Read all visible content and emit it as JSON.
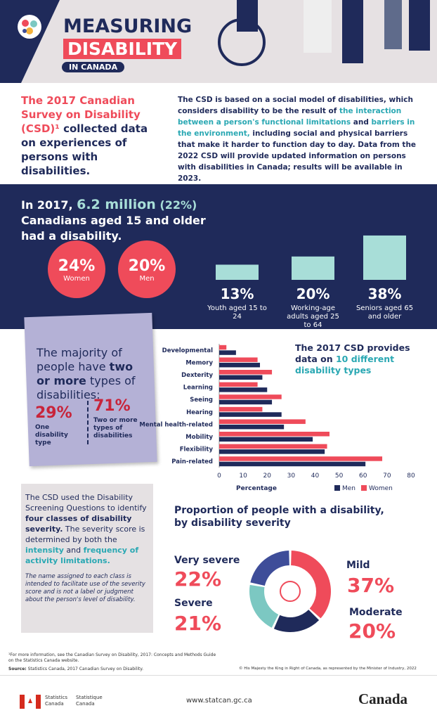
{
  "header": {
    "title_line1": "MEASURING",
    "title_line2": "DISABILITY",
    "subtitle": "IN CANADA"
  },
  "intro": {
    "heading_red": "The 2017 Canadian Survey on Disability (CSD)¹",
    "heading_navy": "collected data on experiences of persons with disabilities.",
    "body": [
      "The CSD is based on a social model of disabilities, which considers disability to be the result of ",
      "the interaction between a person's functional limitations",
      " and ",
      "barriers in the environment,",
      " including social and physical barriers that make it harder to function day to day. Data from the 2022 CSD will provide updated information on persons with disabilities in Canada; results will be available in 2023."
    ]
  },
  "prevalence": {
    "lead": "In 2017,",
    "number": "6.2 million",
    "percent": "(22%)",
    "rest": "Canadians aged 15 and older had a disability."
  },
  "sex": [
    {
      "value": "24%",
      "label": "Women"
    },
    {
      "value": "20%",
      "label": "Men"
    }
  ],
  "majority": {
    "line1": "The majority of people have",
    "bold": "two or more",
    "line2": "types of disabilities:",
    "one_value": "29%",
    "one_label": "One disability type",
    "two_value": "71%",
    "two_label": "Two or more types of disabilities"
  },
  "chart_data": [
    {
      "type": "bar",
      "categories": [
        "Youth aged 15 to 24",
        "Working-age adults aged 25 to 64",
        "Seniors aged 65 and older"
      ],
      "values": [
        13,
        20,
        38
      ],
      "value_labels": [
        "13%",
        "20%",
        "38%"
      ],
      "color": "#a8ded8"
    },
    {
      "type": "hbar",
      "title_start": "The 2017 CSD provides data on ",
      "title_highlight": "10 different disability types",
      "categories": [
        "Developmental",
        "Memory",
        "Dexterity",
        "Learning",
        "Seeing",
        "Hearing",
        "Mental health-related",
        "Mobility",
        "Flexibility",
        "Pain-related"
      ],
      "series": [
        {
          "name": "Men",
          "color": "#1f2a5a",
          "values": [
            7,
            17,
            18,
            20,
            22,
            26,
            27,
            39,
            44,
            61
          ]
        },
        {
          "name": "Women",
          "color": "#ef4b5a",
          "values": [
            3,
            16,
            22,
            16,
            26,
            18,
            36,
            46,
            45,
            68
          ]
        }
      ],
      "xlim": [
        0,
        80
      ],
      "xticks": [
        0,
        10,
        20,
        30,
        40,
        50,
        60,
        70,
        80
      ],
      "xlabel": "Percentage",
      "legend": "bottom-right"
    },
    {
      "type": "donut",
      "title": "Proportion of people with a disability, by disability severity",
      "categories": [
        "Mild",
        "Moderate",
        "Severe",
        "Very severe"
      ],
      "values": [
        37,
        20,
        21,
        22
      ],
      "value_labels": [
        "37%",
        "20%",
        "21%",
        "22%"
      ],
      "colors": [
        "#ef4b5a",
        "#1f2a5a",
        "#7cc8c2",
        "#3e4d99"
      ]
    }
  ],
  "severity": {
    "p1_start": "The CSD used the Disability Screening Questions to identify ",
    "p1_bold": "four classes of disability severity.",
    "p1_mid": " The severity score is determined by both the ",
    "p1_intensity": "intensity",
    "p1_and": " and ",
    "p1_frequency": "frequency of activity limitations.",
    "note": "The name assigned to each class is intended to facilitate use of the severity score and is not a label or judgment about the person's level of disability."
  },
  "footer": {
    "footnote": "¹For more information, see the Canadian Survey on Disability, 2017: Concepts and Methods Guide on the Statistics Canada website.",
    "source_label": "Source:",
    "source": "Statistics Canada, 2017 Canadian Survey on Disability.",
    "copyright": "© His Majesty the King in Right of Canada, as represented by the Minister of Industry, 2022",
    "agency_en": "Statistics Canada",
    "agency_fr": "Statistique Canada",
    "url": "www.statcan.gc.ca",
    "wordmark": "Canada"
  }
}
